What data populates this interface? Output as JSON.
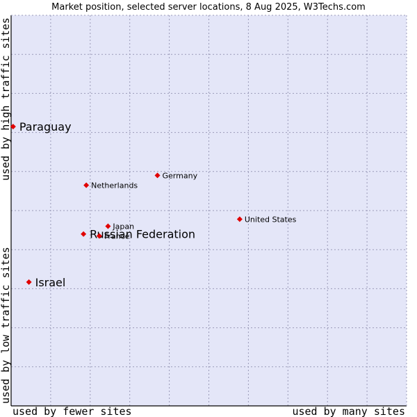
{
  "chart_data": {
    "type": "scatter",
    "title": "Market position, selected server locations, 8 Aug 2025, W3Techs.com",
    "xlabel_low": "used by fewer sites",
    "xlabel_high": "used by many sites",
    "ylabel_low": "used by low traffic sites",
    "ylabel_high": "used by high traffic sites",
    "xlim": [
      0,
      10
    ],
    "ylim": [
      0,
      10
    ],
    "grid": true,
    "colors": {
      "plot_bg": "#e4e6f8",
      "grid": "#9a9ab8",
      "point": "#e00000",
      "border": "#000000"
    },
    "points": [
      {
        "name": "Paraguay",
        "x": 0.05,
        "y": 7.15,
        "emphasis": true
      },
      {
        "name": "Germany",
        "x": 3.7,
        "y": 5.9,
        "emphasis": false
      },
      {
        "name": "Netherlands",
        "x": 1.9,
        "y": 5.65,
        "emphasis": false
      },
      {
        "name": "United States",
        "x": 5.78,
        "y": 4.78,
        "emphasis": false
      },
      {
        "name": "Japan",
        "x": 2.45,
        "y": 4.6,
        "emphasis": false
      },
      {
        "name": "Russian Federation",
        "x": 1.83,
        "y": 4.4,
        "emphasis": true
      },
      {
        "name": "France",
        "x": 2.23,
        "y": 4.35,
        "emphasis": false
      },
      {
        "name": "Israel",
        "x": 0.45,
        "y": 3.17,
        "emphasis": true
      }
    ]
  }
}
